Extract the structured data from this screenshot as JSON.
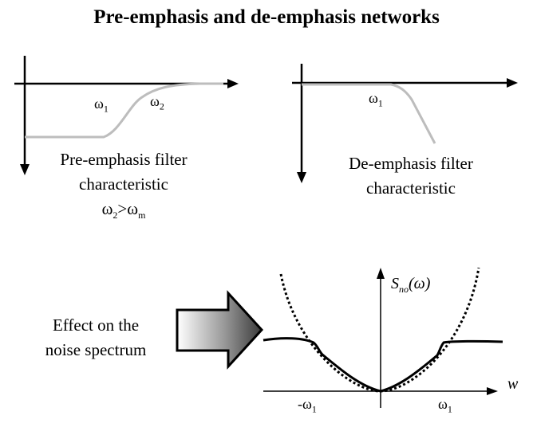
{
  "title": "Pre-emphasis and de-emphasis networks",
  "pre": {
    "w1": "ω",
    "w1_sub": "1",
    "w2": "ω",
    "w2_sub": "2",
    "caption_line1": "Pre-emphasis filter",
    "caption_line2": "characteristic",
    "condition_a": "ω",
    "condition_a_sub": "2",
    "condition_op": ">ω",
    "condition_b_sub": "m"
  },
  "de": {
    "w1": "ω",
    "w1_sub": "1",
    "caption_line1": "De-emphasis filter",
    "caption_line2": "characteristic"
  },
  "effect": {
    "caption_line1": "Effect on the",
    "caption_line2": "noise spectrum",
    "y_label_main": "S",
    "y_label_sub": "no",
    "y_label_arg": "(ω)",
    "x_label": "w",
    "neg_w1": "-ω",
    "neg_w1_sub": "1",
    "pos_w1": "ω",
    "pos_w1_sub": "1"
  },
  "colors": {
    "filter_curve": "#bdbdbd",
    "axes": "#000000"
  }
}
